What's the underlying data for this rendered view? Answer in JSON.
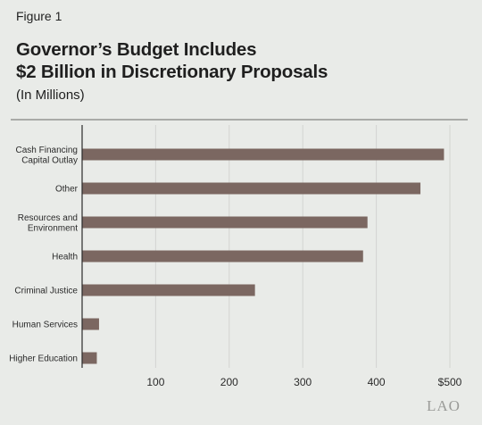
{
  "figure_label": "Figure 1",
  "title_line1": "Governor’s Budget Includes",
  "title_line2": "$2 Billion in Discretionary Proposals",
  "subtitle": "(In Millions)",
  "logo": "LAO",
  "colors": {
    "bar": "#7b6761",
    "grid": "#d3d4d1",
    "axis": "#2a2a2a",
    "background": "#e9ebe8"
  },
  "chart_data": {
    "type": "bar",
    "orientation": "horizontal",
    "categories": [
      [
        "Cash Financing",
        "Capital Outlay"
      ],
      [
        "Other"
      ],
      [
        "Resources and",
        "Environment"
      ],
      [
        "Health"
      ],
      [
        "Criminal Justice"
      ],
      [
        "Human Services"
      ],
      [
        "Higher Education"
      ]
    ],
    "values": [
      492,
      460,
      388,
      382,
      235,
      23,
      20
    ],
    "xlim": [
      0,
      500
    ],
    "xticks": [
      100,
      200,
      300,
      400,
      500
    ],
    "xtick_labels": [
      "100",
      "200",
      "300",
      "400",
      "$500"
    ],
    "grid": true
  }
}
